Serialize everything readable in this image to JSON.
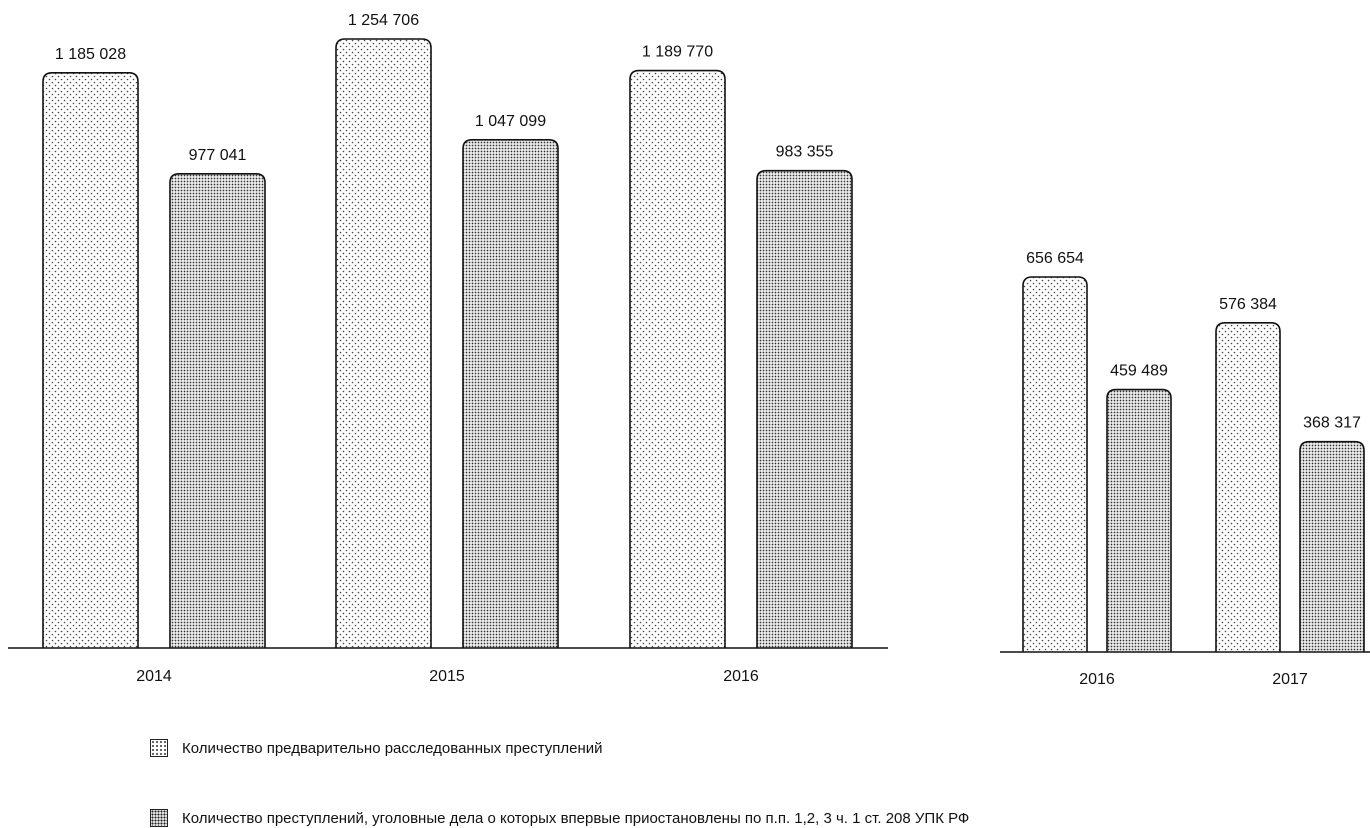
{
  "chart_data": [
    {
      "type": "bar",
      "categories": [
        "2014",
        "2015",
        "2016"
      ],
      "series": [
        {
          "name": "Количество предварительно расследованных преступлений",
          "values": [
            1185028,
            1254706,
            1189770
          ],
          "labels": [
            "1 185 028",
            "1 254 706",
            "1 189 770"
          ]
        },
        {
          "name": "Количество преступлений, уголовные дела о которых впервые приостановлены по п.п. 1,2, 3 ч. 1 ст. 208 УПК РФ",
          "values": [
            977041,
            1047099,
            983355
          ],
          "labels": [
            "977 041",
            "1 047 099",
            "983 355"
          ]
        }
      ],
      "title": "",
      "xlabel": "",
      "ylabel": "",
      "ylim": [
        0,
        1300000
      ],
      "grid": false
    },
    {
      "type": "bar",
      "categories": [
        "2016",
        "2017"
      ],
      "series": [
        {
          "name": "Количество предварительно расследованных преступлений",
          "values": [
            656654,
            576384
          ],
          "labels": [
            "656 654",
            "576 384"
          ]
        },
        {
          "name": "Количество преступлений, уголовные дела о которых впервые приостановлены по п.п. 1,2, 3 ч. 1 ст. 208 УПК РФ",
          "values": [
            459489,
            368317
          ],
          "labels": [
            "459 489",
            "368 317"
          ]
        }
      ],
      "title": "",
      "xlabel": "",
      "ylabel": "",
      "ylim": [
        0,
        700000
      ],
      "grid": false
    }
  ],
  "legend": {
    "items": [
      {
        "label": "Количество предварительно расследованных преступлений",
        "pattern": "light-dots"
      },
      {
        "label": "Количество преступлений, уголовные дела о которых впервые приостановлены по п.п. 1,2, 3 ч. 1 ст. 208 УПК РФ",
        "pattern": "dense-dots"
      }
    ]
  }
}
